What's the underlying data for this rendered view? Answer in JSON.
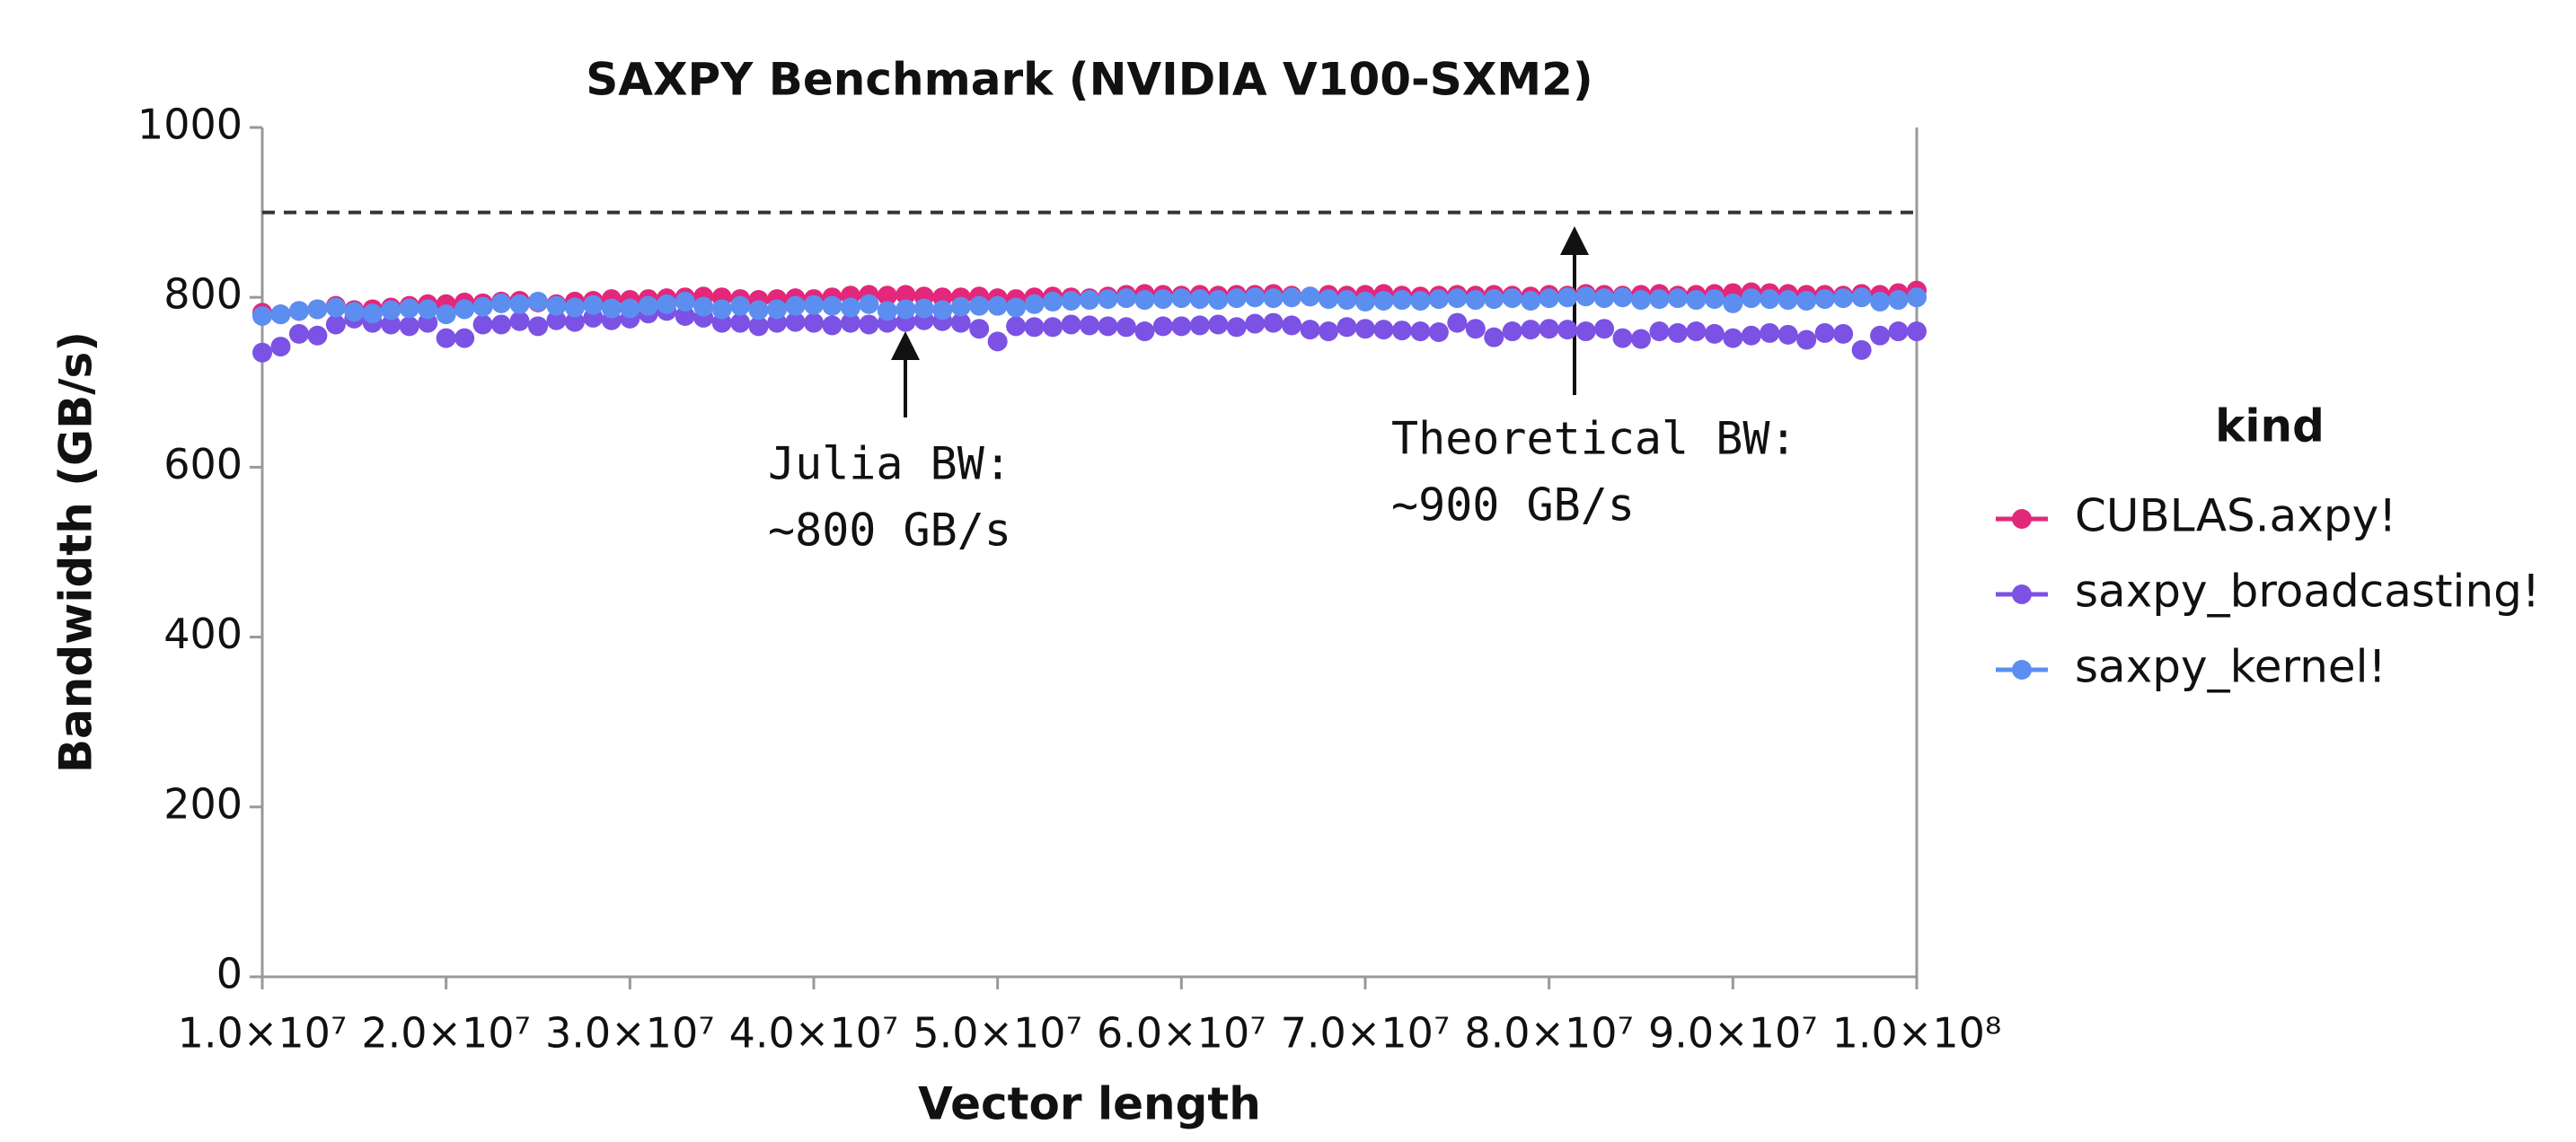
{
  "chart_data": {
    "type": "scatter",
    "title": "SAXPY Benchmark (NVIDIA V100-SXM2)",
    "x_label": "Vector length",
    "y_label": "Bandwidth (GB/s)",
    "xlim": [
      10000000.0,
      100000000.0
    ],
    "ylim": [
      0,
      1000
    ],
    "xticks": [
      {
        "value": 10000000.0,
        "label": "1.0×10⁷"
      },
      {
        "value": 20000000.0,
        "label": "2.0×10⁷"
      },
      {
        "value": 30000000.0,
        "label": "3.0×10⁷"
      },
      {
        "value": 40000000.0,
        "label": "4.0×10⁷"
      },
      {
        "value": 50000000.0,
        "label": "5.0×10⁷"
      },
      {
        "value": 60000000.0,
        "label": "6.0×10⁷"
      },
      {
        "value": 70000000.0,
        "label": "7.0×10⁷"
      },
      {
        "value": 80000000.0,
        "label": "8.0×10⁷"
      },
      {
        "value": 90000000.0,
        "label": "9.0×10⁷"
      },
      {
        "value": 100000000.0,
        "label": "1.0×10⁸"
      }
    ],
    "yticks": [
      0,
      200,
      400,
      600,
      800,
      1000
    ],
    "legend_title": "kind",
    "reference_line": 900,
    "annotations": [
      [
        "Julia BW:",
        "~800 GB/s"
      ],
      [
        "Theoretical BW:",
        "~900 GB/s"
      ]
    ],
    "x": [
      10000000.0,
      11000000.0,
      12000000.0,
      13000000.0,
      14000000.0,
      15000000.0,
      16000000.0,
      17000000.0,
      18000000.0,
      19000000.0,
      20000000.0,
      21000000.0,
      22000000.0,
      23000000.0,
      24000000.0,
      25000000.0,
      26000000.0,
      27000000.0,
      28000000.0,
      29000000.0,
      30000000.0,
      31000000.0,
      32000000.0,
      33000000.0,
      34000000.0,
      35000000.0,
      36000000.0,
      37000000.0,
      38000000.0,
      39000000.0,
      40000000.0,
      41000000.0,
      42000000.0,
      43000000.0,
      44000000.0,
      45000000.0,
      46000000.0,
      47000000.0,
      48000000.0,
      49000000.0,
      50000000.0,
      51000000.0,
      52000000.0,
      53000000.0,
      54000000.0,
      55000000.0,
      56000000.0,
      57000000.0,
      58000000.0,
      59000000.0,
      60000000.0,
      61000000.0,
      62000000.0,
      63000000.0,
      64000000.0,
      65000000.0,
      66000000.0,
      67000000.0,
      68000000.0,
      69000000.0,
      70000000.0,
      71000000.0,
      72000000.0,
      73000000.0,
      74000000.0,
      75000000.0,
      76000000.0,
      77000000.0,
      78000000.0,
      79000000.0,
      80000000.0,
      81000000.0,
      82000000.0,
      83000000.0,
      84000000.0,
      85000000.0,
      86000000.0,
      87000000.0,
      88000000.0,
      89000000.0,
      90000000.0,
      91000000.0,
      92000000.0,
      93000000.0,
      94000000.0,
      95000000.0,
      96000000.0,
      97000000.0,
      98000000.0,
      99000000.0,
      100000000.0
    ],
    "series": [
      {
        "name": "CUBLAS.axpy!",
        "color": "#e3277b",
        "values": [
          782,
          780,
          784,
          786,
          790,
          785,
          786,
          788,
          790,
          792,
          792,
          794,
          793,
          795,
          796,
          794,
          792,
          795,
          796,
          798,
          797,
          798,
          799,
          800,
          801,
          800,
          798,
          797,
          798,
          799,
          798,
          800,
          802,
          803,
          802,
          803,
          801,
          800,
          800,
          801,
          799,
          798,
          800,
          801,
          800,
          799,
          801,
          803,
          804,
          803,
          802,
          803,
          802,
          803,
          803,
          804,
          802,
          801,
          803,
          802,
          803,
          804,
          802,
          801,
          802,
          803,
          802,
          803,
          802,
          801,
          803,
          802,
          804,
          803,
          802,
          803,
          804,
          802,
          803,
          804,
          805,
          806,
          805,
          804,
          803,
          803,
          802,
          804,
          803,
          805,
          808
        ]
      },
      {
        "name": "saxpy_broadcasting!",
        "color": "#7c52e4",
        "values": [
          735,
          742,
          757,
          755,
          768,
          775,
          770,
          768,
          766,
          770,
          752,
          752,
          768,
          768,
          772,
          766,
          773,
          771,
          776,
          773,
          775,
          781,
          784,
          778,
          776,
          770,
          770,
          766,
          770,
          771,
          770,
          767,
          770,
          768,
          770,
          771,
          773,
          772,
          770,
          763,
          748,
          766,
          765,
          765,
          768,
          767,
          766,
          765,
          760,
          766,
          766,
          767,
          768,
          765,
          769,
          770,
          767,
          762,
          760,
          765,
          763,
          762,
          761,
          760,
          759,
          770,
          763,
          753,
          760,
          762,
          763,
          762,
          760,
          763,
          752,
          751,
          760,
          758,
          760,
          757,
          752,
          755,
          758,
          756,
          750,
          758,
          757,
          738,
          755,
          760,
          760
        ]
      },
      {
        "name": "saxpy_kernel!",
        "color": "#5c8ef0",
        "values": [
          778,
          780,
          784,
          786,
          788,
          783,
          781,
          785,
          787,
          786,
          780,
          786,
          789,
          793,
          792,
          795,
          790,
          788,
          791,
          787,
          787,
          790,
          792,
          795,
          789,
          786,
          790,
          785,
          786,
          790,
          791,
          790,
          788,
          792,
          784,
          786,
          787,
          785,
          789,
          790,
          790,
          788,
          792,
          795,
          796,
          797,
          798,
          799,
          797,
          798,
          799,
          798,
          797,
          799,
          800,
          799,
          800,
          801,
          798,
          797,
          795,
          796,
          797,
          796,
          798,
          799,
          797,
          798,
          799,
          796,
          799,
          800,
          801,
          799,
          800,
          797,
          798,
          799,
          797,
          798,
          793,
          799,
          798,
          797,
          796,
          798,
          799,
          800,
          795,
          797,
          800
        ]
      }
    ]
  }
}
